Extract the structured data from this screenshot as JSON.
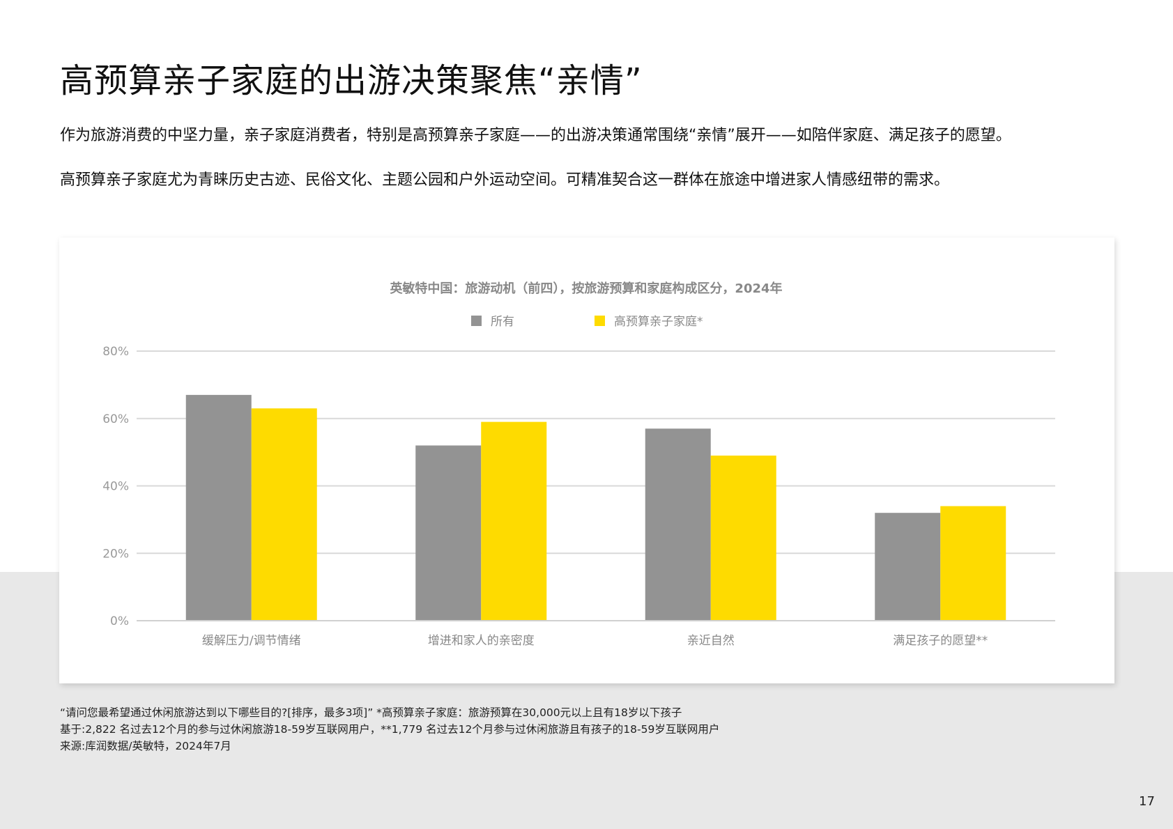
{
  "page": {
    "title": "高预算亲子家庭的出游决策聚焦“亲情”",
    "paragraphs": [
      "作为旅游消费的中坚力量，亲子家庭消费者，特别是高预算亲子家庭——的出游决策通常围绕“亲情”展开——如陪伴家庭、满足孩子的愿望。",
      "高预算亲子家庭尤为青睐历史古迹、民俗文化、主题公园和户外运动空间。可精准契合这一群体在旅途中增进家人情感纽带的需求。"
    ],
    "footnotes": [
      "“请问您最希望通过休闲旅游达到以下哪些目的?[排序，最多3项]” *高预算亲子家庭：旅游预算在30,000元以上且有18岁以下孩子",
      "基于:2,822 名过去12个月的参与过休闲旅游18-59岁互联网用户，**1,779 名过去12个月参与过休闲旅游且有孩子的18-59岁互联网用户",
      "来源:库润数据/英敏特，2024年7月"
    ],
    "page_number": "17"
  },
  "chart_data": {
    "type": "bar",
    "title": "英敏特中国：旅游动机（前四），按旅游预算和家庭构成区分，2024年",
    "categories": [
      "缓解压力/调节情绪",
      "增进和家人的亲密度",
      "亲近自然",
      "满足孩子的愿望**"
    ],
    "series": [
      {
        "name": "所有",
        "values": [
          67,
          52,
          57,
          32
        ],
        "color": "#939393"
      },
      {
        "name": "高预算亲子家庭*",
        "values": [
          63,
          59,
          49,
          34
        ],
        "color": "#fedb00"
      }
    ],
    "ylim": [
      0,
      80
    ],
    "yticks": [
      "0%",
      "20%",
      "40%",
      "60%",
      "80%"
    ],
    "ytick_values": [
      0,
      20,
      40,
      60,
      80
    ],
    "grid": true,
    "legend": "top-center"
  }
}
